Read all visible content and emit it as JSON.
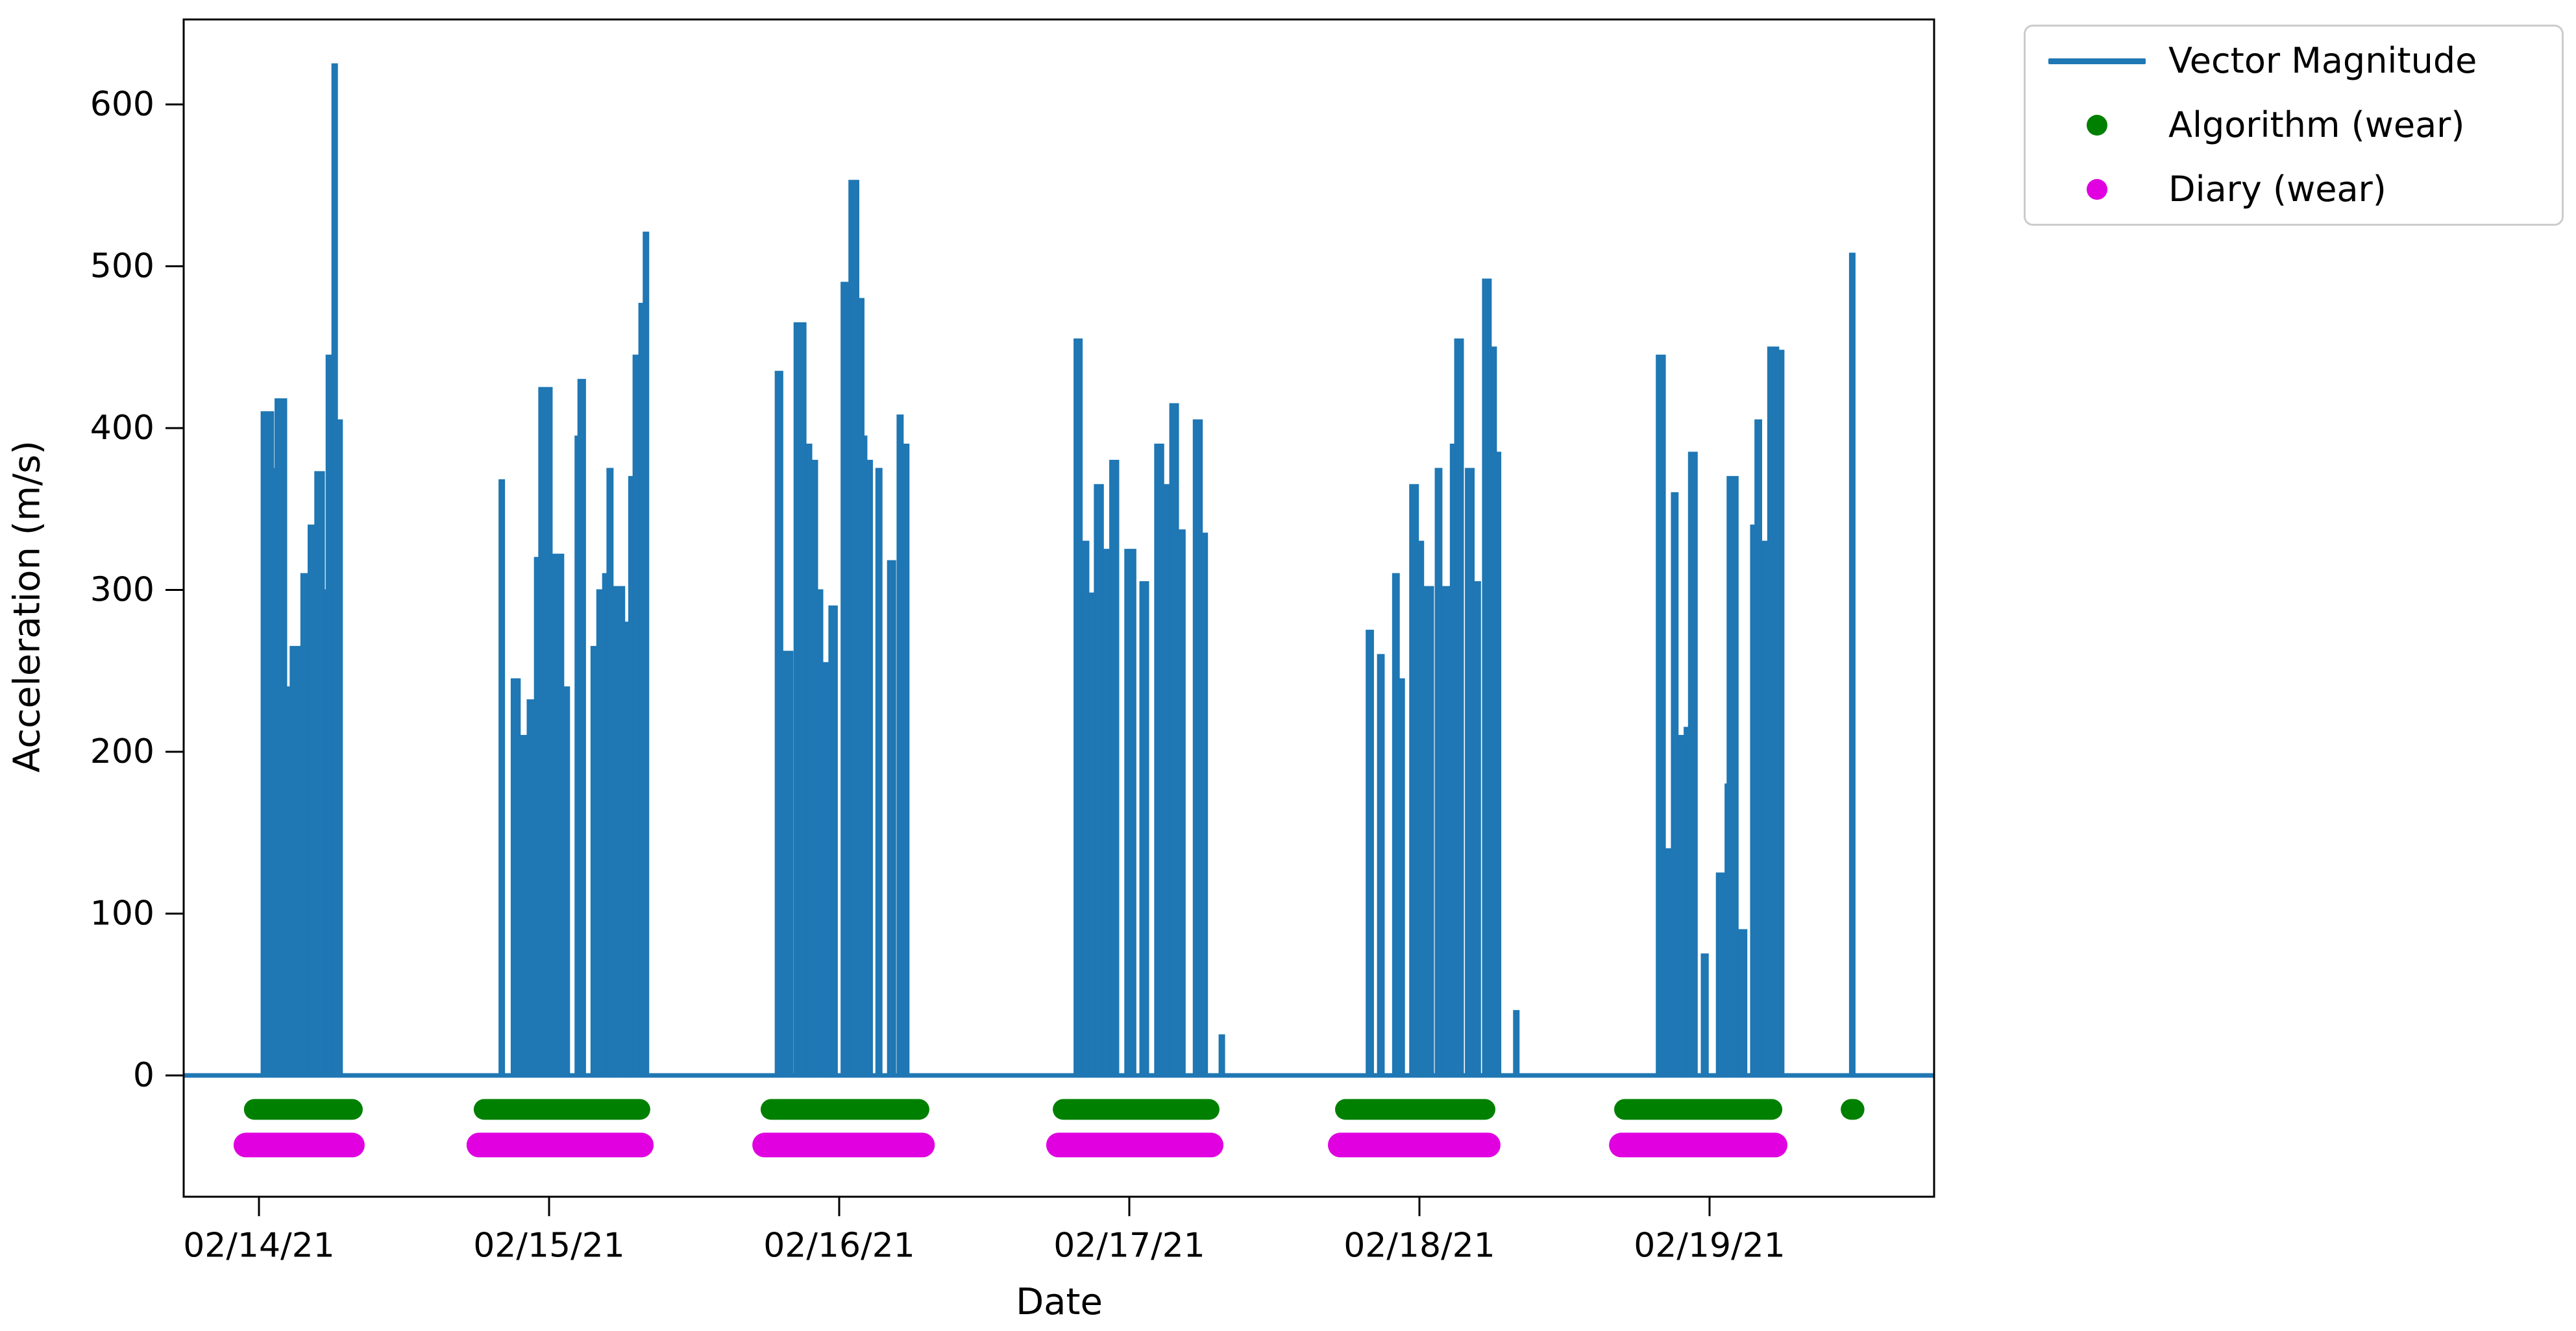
{
  "figure": {
    "background": "#ffffff"
  },
  "legend": {
    "entries": [
      {
        "label": "Vector Magnitude",
        "marker": "line",
        "color": "#1f77b4"
      },
      {
        "label": "Algorithm (wear)",
        "marker": "dot",
        "color": "#008000"
      },
      {
        "label": "Diary (wear)",
        "marker": "dot",
        "color": "#e000e0"
      }
    ]
  },
  "chart_data": {
    "type": "line",
    "title": "",
    "xlabel": "Date",
    "ylabel": "Acceleration (m/s)",
    "x_axis": {
      "unit": "days",
      "tick_positions_days": [
        0,
        1,
        2,
        3,
        4,
        5
      ],
      "tick_labels": [
        "02/14/21",
        "02/15/21",
        "02/16/21",
        "02/17/21",
        "02/18/21",
        "02/19/21"
      ],
      "xlim_days": [
        -0.26,
        5.774
      ]
    },
    "y_axis": {
      "tick_values": [
        0,
        100,
        200,
        300,
        400,
        500,
        600
      ],
      "ylim": [
        -75,
        652
      ],
      "grid": false
    },
    "legend_position": "outside upper right",
    "series": [
      {
        "name": "Vector Magnitude",
        "color": "#1f77b4",
        "style": "spike-line",
        "baseline_value": 0,
        "segments_days_heights": [
          [
            0.008,
            0.05,
            410
          ],
          [
            0.05,
            0.056,
            375
          ],
          [
            0.056,
            0.095,
            418
          ],
          [
            0.095,
            0.108,
            240
          ],
          [
            0.108,
            0.145,
            265
          ],
          [
            0.145,
            0.17,
            310
          ],
          [
            0.17,
            0.193,
            340
          ],
          [
            0.193,
            0.225,
            373
          ],
          [
            0.225,
            0.232,
            300
          ],
          [
            0.232,
            0.252,
            445
          ],
          [
            0.252,
            0.262,
            625
          ],
          [
            0.262,
            0.287,
            405
          ],
          [
            0.828,
            0.845,
            368
          ],
          [
            0.87,
            0.9,
            245
          ],
          [
            0.9,
            0.925,
            210
          ],
          [
            0.925,
            0.95,
            232
          ],
          [
            0.95,
            0.965,
            320
          ],
          [
            0.965,
            1.01,
            425
          ],
          [
            1.01,
            1.05,
            322
          ],
          [
            1.05,
            1.07,
            240
          ],
          [
            1.09,
            1.1,
            395
          ],
          [
            1.1,
            1.125,
            430
          ],
          [
            1.145,
            1.165,
            265
          ],
          [
            1.165,
            1.185,
            300
          ],
          [
            1.185,
            1.2,
            310
          ],
          [
            1.2,
            1.22,
            375
          ],
          [
            1.22,
            1.26,
            302
          ],
          [
            1.26,
            1.275,
            280
          ],
          [
            1.275,
            1.29,
            370
          ],
          [
            1.29,
            1.31,
            445
          ],
          [
            1.31,
            1.325,
            477
          ],
          [
            1.325,
            1.335,
            521
          ],
          [
            1.78,
            1.805,
            435
          ],
          [
            1.805,
            1.84,
            262
          ],
          [
            1.845,
            1.885,
            465
          ],
          [
            1.885,
            1.905,
            390
          ],
          [
            1.905,
            1.925,
            380
          ],
          [
            1.925,
            1.94,
            300
          ],
          [
            1.94,
            1.965,
            255
          ],
          [
            1.965,
            1.993,
            290
          ],
          [
            2.007,
            2.034,
            490
          ],
          [
            2.034,
            2.067,
            553
          ],
          [
            2.067,
            2.077,
            480
          ],
          [
            2.077,
            2.094,
            395
          ],
          [
            2.094,
            2.114,
            380
          ],
          [
            2.127,
            2.147,
            375
          ],
          [
            2.167,
            2.194,
            318
          ],
          [
            2.2,
            2.22,
            408
          ],
          [
            2.22,
            2.24,
            390
          ],
          [
            2.81,
            2.837,
            455
          ],
          [
            2.837,
            2.86,
            330
          ],
          [
            2.86,
            2.88,
            298
          ],
          [
            2.88,
            2.91,
            365
          ],
          [
            2.91,
            2.933,
            325
          ],
          [
            2.933,
            2.963,
            380
          ],
          [
            2.985,
            3.022,
            325
          ],
          [
            3.037,
            3.066,
            305
          ],
          [
            3.088,
            3.118,
            390
          ],
          [
            3.118,
            3.14,
            365
          ],
          [
            3.14,
            3.169,
            415
          ],
          [
            3.169,
            3.192,
            337
          ],
          [
            3.221,
            3.251,
            405
          ],
          [
            3.251,
            3.265,
            335
          ],
          [
            3.31,
            3.32,
            25
          ],
          [
            3.817,
            3.841,
            275
          ],
          [
            3.856,
            3.878,
            260
          ],
          [
            3.908,
            3.93,
            310
          ],
          [
            3.93,
            3.945,
            245
          ],
          [
            3.967,
            3.996,
            365
          ],
          [
            3.996,
            4.011,
            330
          ],
          [
            4.011,
            4.048,
            302
          ],
          [
            4.055,
            4.077,
            375
          ],
          [
            4.077,
            4.107,
            302
          ],
          [
            4.107,
            4.122,
            390
          ],
          [
            4.122,
            4.151,
            455
          ],
          [
            4.159,
            4.188,
            375
          ],
          [
            4.188,
            4.21,
            305
          ],
          [
            4.218,
            4.247,
            492
          ],
          [
            4.247,
            4.262,
            450
          ],
          [
            4.262,
            4.277,
            385
          ],
          [
            4.325,
            4.34,
            40
          ],
          [
            4.817,
            4.847,
            445
          ],
          [
            4.847,
            4.862,
            140
          ],
          [
            4.869,
            4.891,
            360
          ],
          [
            4.891,
            4.913,
            210
          ],
          [
            4.913,
            4.928,
            215
          ],
          [
            4.928,
            4.957,
            385
          ],
          [
            4.972,
            4.995,
            75
          ],
          [
            5.024,
            5.054,
            125
          ],
          [
            5.054,
            5.061,
            180
          ],
          [
            5.061,
            5.098,
            370
          ],
          [
            5.098,
            5.128,
            90
          ],
          [
            5.142,
            5.157,
            340
          ],
          [
            5.157,
            5.179,
            405
          ],
          [
            5.179,
            5.201,
            330
          ],
          [
            5.201,
            5.238,
            450
          ],
          [
            5.238,
            5.253,
            448
          ],
          [
            5.483,
            5.493,
            508
          ]
        ]
      },
      {
        "name": "Algorithm (wear)",
        "color": "#008000",
        "style": "thick-dot-band",
        "y_value": -21,
        "bands_days": [
          [
            -0.016,
            0.322
          ],
          [
            0.776,
            1.313
          ],
          [
            1.765,
            2.275
          ],
          [
            2.772,
            3.275
          ],
          [
            3.745,
            4.226
          ],
          [
            4.707,
            5.215
          ],
          [
            5.488,
            5.498
          ]
        ]
      },
      {
        "name": "Diary (wear)",
        "color": "#e000e0",
        "style": "thick-dot-band",
        "y_value": -43,
        "bands_days": [
          [
            -0.045,
            0.322
          ],
          [
            0.758,
            1.318
          ],
          [
            1.743,
            2.287
          ],
          [
            2.756,
            3.282
          ],
          [
            3.727,
            4.237
          ],
          [
            4.696,
            5.226
          ]
        ]
      }
    ]
  }
}
